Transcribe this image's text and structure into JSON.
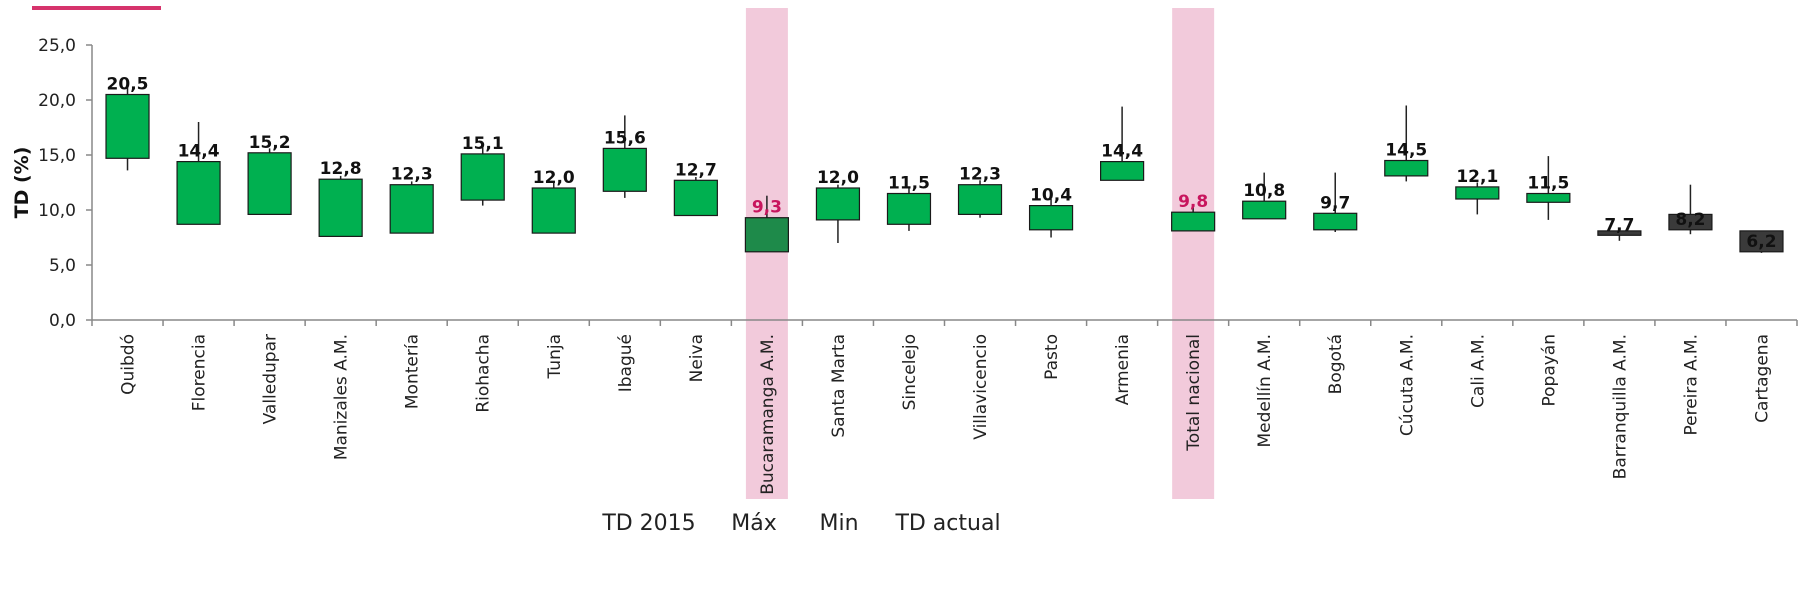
{
  "chart_data": {
    "type": "candlestick",
    "ylabel": "TD (%)",
    "ylim": [
      0,
      25
    ],
    "yticks": [
      "0,0",
      "5,0",
      "10,0",
      "15,0",
      "20,0",
      "25,0"
    ],
    "ytick_values": [
      0,
      5,
      10,
      15,
      20,
      25
    ],
    "legend": [
      "TD 2015",
      "Máx",
      "Min",
      "TD actual"
    ],
    "highlighted_categories": [
      "Bucaramanga A.M.",
      "Total nacional"
    ],
    "colors": {
      "up": "#00b050",
      "highlight_up": "#1e8a4a",
      "down": "#3a3a3a",
      "highlight_band": "#f2cadb",
      "highlight_text": "#c8155e",
      "accent_line": "#d6336c",
      "axis": "#888888"
    },
    "categories": [
      "Quibdó",
      "Florencia",
      "Valledupar",
      "Manizales A.M.",
      "Montería",
      "Riohacha",
      "Tunja",
      "Ibagué",
      "Neiva",
      "Bucaramanga A.M.",
      "Santa Marta",
      "Sincelejo",
      "Villavicencio",
      "Pasto",
      "Armenia",
      "Total nacional",
      "Medellín A.M.",
      "Bogotá",
      "Cúcuta A.M.",
      "Cali A.M.",
      "Popayán",
      "Barranquilla A.M.",
      "Pereira A.M.",
      "Cartagena"
    ],
    "labels": [
      "20,5",
      "14,4",
      "15,2",
      "12,8",
      "12,3",
      "15,1",
      "12,0",
      "15,6",
      "12,7",
      "9,3",
      "12,0",
      "11,5",
      "12,3",
      "10,4",
      "14,4",
      "9,8",
      "10,8",
      "9,7",
      "14,5",
      "12,1",
      "11,5",
      "7,7",
      "8,2",
      "6,2"
    ],
    "td_2015": [
      14.7,
      8.7,
      9.6,
      7.6,
      7.9,
      10.9,
      7.9,
      11.7,
      9.5,
      6.2,
      9.1,
      8.7,
      9.6,
      8.2,
      12.7,
      8.1,
      9.2,
      8.2,
      13.1,
      11.0,
      10.7,
      8.1,
      9.6,
      8.1
    ],
    "td_actual": [
      20.5,
      14.4,
      15.2,
      12.8,
      12.3,
      15.1,
      12.0,
      15.6,
      12.7,
      9.3,
      12.0,
      11.5,
      12.3,
      10.4,
      14.4,
      9.8,
      10.8,
      9.7,
      14.5,
      12.1,
      11.5,
      7.7,
      8.2,
      6.2
    ],
    "max": [
      21.2,
      18.0,
      15.6,
      13.1,
      12.6,
      15.8,
      12.6,
      18.6,
      13.0,
      11.3,
      12.3,
      12.0,
      12.7,
      11.0,
      19.4,
      10.3,
      13.4,
      13.4,
      19.5,
      12.5,
      14.9,
      8.2,
      12.3,
      6.9
    ],
    "min": [
      13.6,
      8.7,
      9.6,
      7.6,
      7.9,
      10.4,
      7.9,
      11.1,
      9.5,
      6.2,
      7.0,
      8.1,
      9.3,
      7.5,
      12.7,
      8.1,
      9.2,
      8.0,
      12.6,
      9.6,
      9.1,
      7.2,
      7.8,
      6.1
    ],
    "series_type": [
      "up",
      "up",
      "up",
      "up",
      "up",
      "up",
      "up",
      "up",
      "up",
      "highlight",
      "up",
      "up",
      "up",
      "up",
      "up",
      "up",
      "up",
      "up",
      "up",
      "up",
      "up",
      "down",
      "down",
      "down"
    ]
  }
}
